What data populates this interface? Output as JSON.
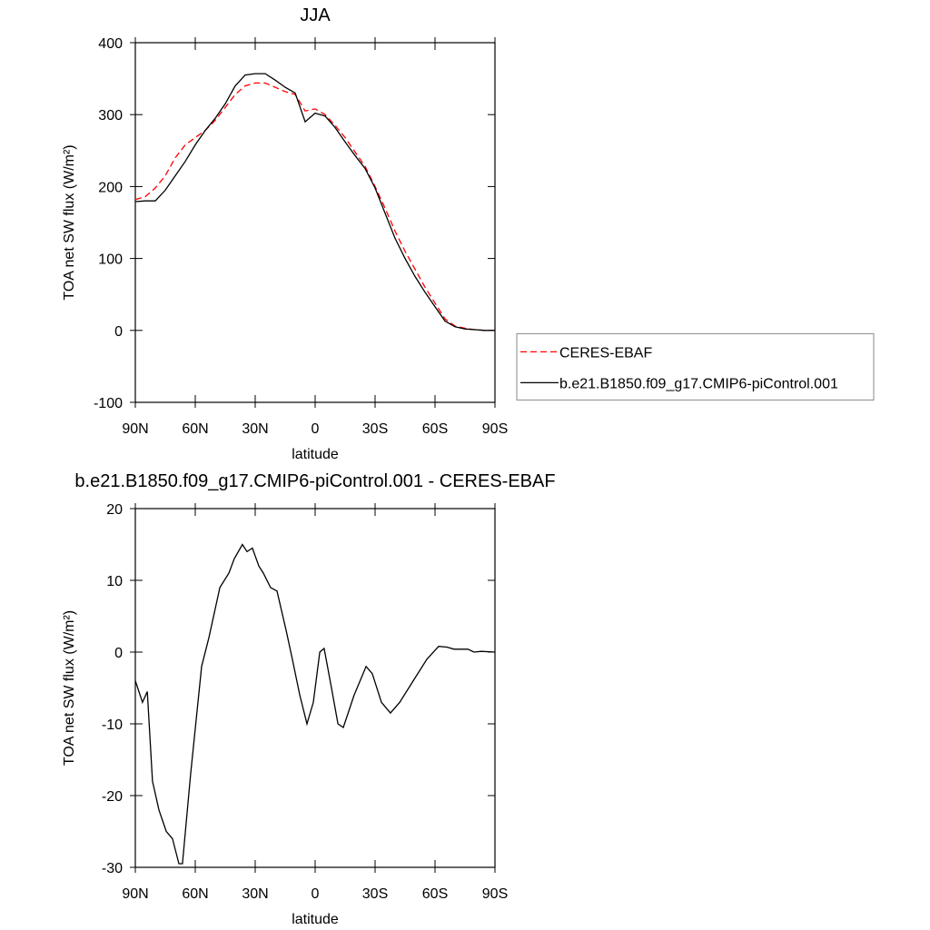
{
  "chart_data": [
    {
      "type": "line",
      "title": "JJA",
      "xlabel": "latitude",
      "ylabel": "TOA net SW flux (W/m²)",
      "x": [
        90,
        85,
        80,
        75,
        70,
        65,
        60,
        55,
        50,
        45,
        40,
        35,
        30,
        25,
        20,
        15,
        10,
        5,
        0,
        -5,
        -10,
        -15,
        -20,
        -25,
        -30,
        -35,
        -40,
        -45,
        -50,
        -55,
        -60,
        -65,
        -70,
        -75,
        -80,
        -85,
        -90
      ],
      "series": [
        {
          "name": "CERES-EBAF",
          "color": "#ff0000",
          "dash": true,
          "values": [
            182,
            186,
            198,
            215,
            240,
            258,
            268,
            278,
            292,
            310,
            328,
            340,
            344,
            344,
            338,
            332,
            328,
            305,
            308,
            300,
            285,
            268,
            248,
            228,
            200,
            170,
            138,
            110,
            85,
            60,
            38,
            16,
            6,
            3,
            1,
            0,
            0
          ]
        },
        {
          "name": "b.e21.B1850.f09_g17.CMIP6-piControl.001",
          "color": "#000000",
          "dash": false,
          "values": [
            179,
            180,
            180,
            195,
            215,
            235,
            258,
            278,
            295,
            315,
            340,
            355,
            357,
            357,
            348,
            338,
            330,
            290,
            302,
            298,
            282,
            262,
            243,
            225,
            198,
            163,
            128,
            100,
            75,
            53,
            33,
            13,
            5,
            2,
            1,
            0,
            0
          ]
        }
      ],
      "xlim": [
        90,
        -90
      ],
      "xticks": [
        {
          "value": 90,
          "label": "90N"
        },
        {
          "value": 60,
          "label": "60N"
        },
        {
          "value": 30,
          "label": "30N"
        },
        0,
        {
          "value": -30,
          "label": "30S"
        },
        {
          "value": -60,
          "label": "60S"
        },
        {
          "value": -90,
          "label": "90S"
        }
      ],
      "ylim": [
        -100,
        400
      ],
      "yticks": [
        -100,
        0,
        100,
        200,
        300,
        400
      ],
      "legend": "right"
    },
    {
      "type": "line",
      "title": "b.e21.B1850.f09_g17.CMIP6-piControl.001 - CERES-EBAF",
      "xlabel": "latitude",
      "ylabel": "TOA net SW flux (W/m²)",
      "x": [
        90,
        86.4,
        84,
        81.4,
        78.2,
        74.5,
        71.4,
        68.2,
        66.4,
        62.3,
        56.8,
        53.2,
        47.7,
        43.2,
        40.5,
        36.4,
        34.1,
        31.4,
        28.2,
        25.9,
        22.3,
        19.1,
        14.5,
        11.4,
        7.7,
        4.1,
        0.9,
        -2.3,
        -4.5,
        -8.2,
        -11.4,
        -14.1,
        -19.5,
        -25.5,
        -28.6,
        -33.2,
        -37.7,
        -42.3,
        -49.1,
        -55.9,
        -61.8,
        -65.9,
        -69.5,
        -76.4,
        -79.5,
        -83.2,
        -90
      ],
      "series": [
        {
          "color": "#000000",
          "dash": false,
          "values": [
            -4,
            -7,
            -5.5,
            -18,
            -22,
            -25,
            -26,
            -29.5,
            -29.5,
            -17,
            -2,
            2,
            9,
            11,
            13,
            15,
            14,
            14.5,
            12,
            11,
            9,
            8.5,
            3,
            -1,
            -6,
            -10,
            -7,
            0,
            0.5,
            -5,
            -10,
            -10.5,
            -6,
            -2,
            -3,
            -7,
            -8.5,
            -7,
            -4,
            -1,
            0.8,
            0.7,
            0.4,
            0.4,
            0,
            0.1,
            0
          ]
        }
      ],
      "xlim": [
        90,
        -90
      ],
      "xticks": [
        {
          "value": 90,
          "label": "90N"
        },
        {
          "value": 60,
          "label": "60N"
        },
        {
          "value": 30,
          "label": "30N"
        },
        0,
        {
          "value": -30,
          "label": "30S"
        },
        {
          "value": -60,
          "label": "60S"
        },
        {
          "value": -90,
          "label": "90S"
        }
      ],
      "ylim": [
        -30,
        20
      ],
      "yticks": [
        -30,
        -20,
        -10,
        0,
        10,
        20
      ]
    }
  ]
}
